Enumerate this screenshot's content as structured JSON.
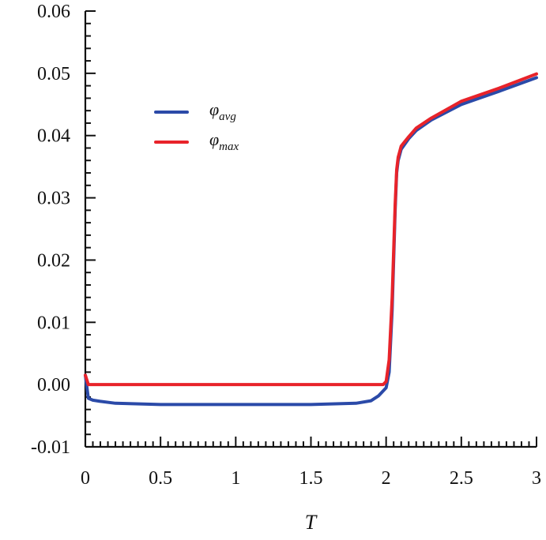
{
  "chart_data": {
    "type": "line",
    "title": "",
    "xlabel": "T",
    "ylabel": "",
    "xlim": [
      0,
      3
    ],
    "ylim": [
      -0.01,
      0.06
    ],
    "x_ticks": [
      0,
      0.5,
      1,
      1.5,
      2,
      2.5,
      3
    ],
    "x_tick_labels": [
      "0",
      "0.5",
      "1",
      "1.5",
      "2",
      "2.5",
      "3"
    ],
    "y_ticks": [
      -0.01,
      0.0,
      0.01,
      0.02,
      0.03,
      0.04,
      0.05,
      0.06
    ],
    "y_tick_labels": [
      "-0.01",
      "0.00",
      "0.01",
      "0.02",
      "0.03",
      "0.04",
      "0.05",
      "0.06"
    ],
    "grid": false,
    "legend_position": "top-left",
    "series": [
      {
        "name": "φ",
        "subscript": "avg",
        "color": "#2b4aa8",
        "x": [
          0,
          0.02,
          0.05,
          0.1,
          0.2,
          0.5,
          1.0,
          1.5,
          1.8,
          1.9,
          1.95,
          2.0,
          2.02,
          2.04,
          2.06,
          2.07,
          2.08,
          2.1,
          2.15,
          2.2,
          2.3,
          2.5,
          2.75,
          3.0
        ],
        "y": [
          0.0015,
          -0.0022,
          -0.0025,
          -0.0027,
          -0.003,
          -0.0032,
          -0.0032,
          -0.0032,
          -0.003,
          -0.0026,
          -0.0018,
          -0.0005,
          0.002,
          0.012,
          0.028,
          0.034,
          0.036,
          0.0378,
          0.0395,
          0.0408,
          0.0425,
          0.045,
          0.0471,
          0.0493
        ]
      },
      {
        "name": "φ",
        "subscript": "max",
        "color": "#e8232a",
        "x": [
          0,
          0.02,
          0.5,
          1.0,
          1.5,
          1.9,
          1.98,
          2.0,
          2.02,
          2.04,
          2.06,
          2.07,
          2.08,
          2.1,
          2.15,
          2.2,
          2.3,
          2.5,
          2.75,
          3.0
        ],
        "y": [
          0.0015,
          0.0,
          0.0,
          0.0,
          0.0,
          0.0,
          0.0,
          0.0005,
          0.004,
          0.014,
          0.029,
          0.0345,
          0.0365,
          0.0383,
          0.0398,
          0.0412,
          0.0428,
          0.0455,
          0.0476,
          0.0499
        ]
      }
    ]
  }
}
